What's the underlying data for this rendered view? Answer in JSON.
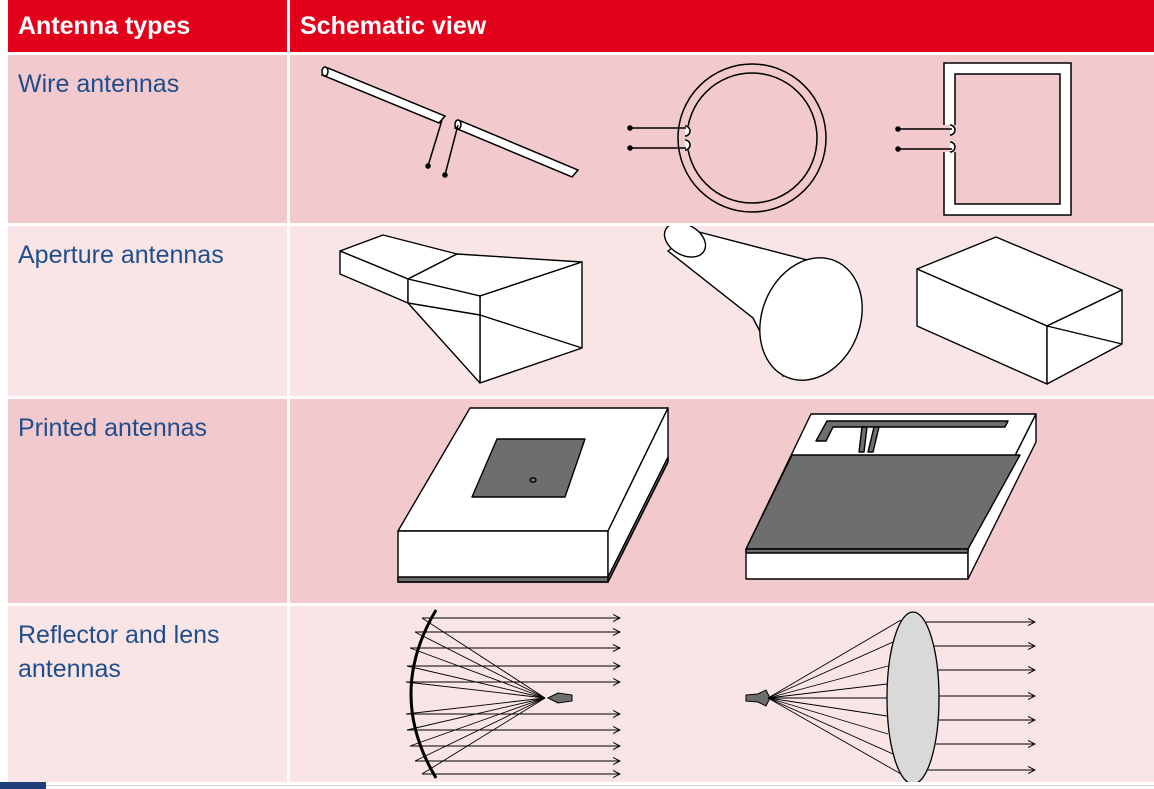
{
  "header": {
    "col1": "Antenna types",
    "col2": "Schematic view"
  },
  "rows": [
    {
      "label": "Wire antennas",
      "items": [
        "dipole-antenna",
        "circular-loop-antenna",
        "rectangular-loop-antenna"
      ]
    },
    {
      "label": "Aperture antennas",
      "items": [
        "pyramidal-horn-antenna",
        "conical-horn-antenna",
        "rectangular-waveguide-aperture"
      ]
    },
    {
      "label": "Printed antennas",
      "items": [
        "microstrip-patch-antenna",
        "printed-inverted-f-antenna"
      ]
    },
    {
      "label": "Reflector and lens antennas",
      "items": [
        "parabolic-reflector-antenna",
        "lens-antenna"
      ]
    }
  ],
  "colors": {
    "header_bg": "#e3001b",
    "header_text": "#ffffff",
    "label_text": "#1f4e8c",
    "row_dark": "#f2c9cc",
    "row_light": "#f9e5e6",
    "conductor": "#6e6e6e",
    "lens_fill": "#d9d9d9"
  }
}
